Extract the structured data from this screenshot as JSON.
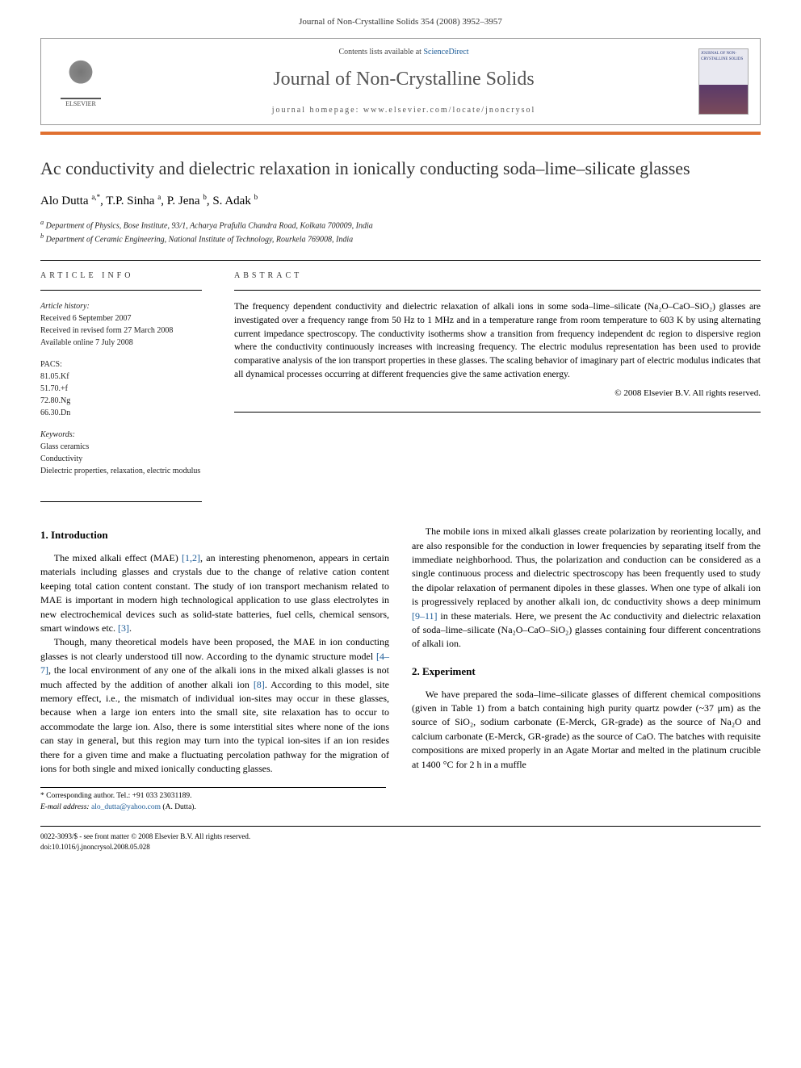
{
  "journal_ref": "Journal of Non-Crystalline Solids 354 (2008) 3952–3957",
  "header": {
    "publisher_name": "ELSEVIER",
    "contents_prefix": "Contents lists available at ",
    "contents_link": "ScienceDirect",
    "journal_name": "Journal of Non-Crystalline Solids",
    "homepage_label": "journal homepage: www.elsevier.com/locate/jnoncrysol",
    "cover_title": "JOURNAL OF NON-CRYSTALLINE SOLIDS"
  },
  "title": "Ac conductivity and dielectric relaxation in ionically conducting soda–lime–silicate glasses",
  "authors_html": "Alo Dutta <sup>a,*</sup>, T.P. Sinha <sup>a</sup>, P. Jena <sup>b</sup>, S. Adak <sup>b</sup>",
  "affiliations": {
    "a": "Department of Physics, Bose Institute, 93/1, Acharya Prafulla Chandra Road, Kolkata 700009, India",
    "b": "Department of Ceramic Engineering, National Institute of Technology, Rourkela 769008, India"
  },
  "article_info_label": "ARTICLE INFO",
  "abstract_label": "ABSTRACT",
  "history": {
    "head": "Article history:",
    "received": "Received 6 September 2007",
    "revised": "Received in revised form 27 March 2008",
    "online": "Available online 7 July 2008"
  },
  "pacs": {
    "head": "PACS:",
    "items": [
      "81.05.Kf",
      "51.70.+f",
      "72.80.Ng",
      "66.30.Dn"
    ]
  },
  "keywords": {
    "head": "Keywords:",
    "items": [
      "Glass ceramics",
      "Conductivity",
      "Dielectric properties, relaxation, electric modulus"
    ]
  },
  "abstract": "The frequency dependent conductivity and dielectric relaxation of alkali ions in some soda–lime–silicate (Na₂O–CaO–SiO₂) glasses are investigated over a frequency range from 50 Hz to 1 MHz and in a temperature range from room temperature to 603 K by using alternating current impedance spectroscopy. The conductivity isotherms show a transition from frequency independent dc region to dispersive region where the conductivity continuously increases with increasing frequency. The electric modulus representation has been used to provide comparative analysis of the ion transport properties in these glasses. The scaling behavior of imaginary part of electric modulus indicates that all dynamical processes occurring at different frequencies give the same activation energy.",
  "copyright": "© 2008 Elsevier B.V. All rights reserved.",
  "sections": {
    "intro_head": "1. Introduction",
    "intro_p1": "The mixed alkali effect (MAE) [1,2], an interesting phenomenon, appears in certain materials including glasses and crystals due to the change of relative cation content keeping total cation content constant. The study of ion transport mechanism related to MAE is important in modern high technological application to use glass electrolytes in new electrochemical devices such as solid-state batteries, fuel cells, chemical sensors, smart windows etc. [3].",
    "intro_p2": "Though, many theoretical models have been proposed, the MAE in ion conducting glasses is not clearly understood till now. According to the dynamic structure model [4–7], the local environment of any one of the alkali ions in the mixed alkali glasses is not much affected by the addition of another alkali ion [8]. According to this model, site memory effect, i.e., the mismatch of individual ion-sites may occur in these glasses, because when a large ion enters into the small site, site relaxation has to occur to accommodate the large ion. Also, there is some interstitial sites where none of the ions can stay in general, but this region may turn into the typical ion-sites if an ion resides there for a given time and make a fluctuating percolation pathway for the migration of ions for both single and mixed ionically conducting glasses.",
    "intro_p3": "The mobile ions in mixed alkali glasses create polarization by reorienting locally, and are also responsible for the conduction in lower frequencies by separating itself from the immediate neighborhood. Thus, the polarization and conduction can be considered as a single continuous process and dielectric spectroscopy has been frequently used to study the dipolar relaxation of permanent dipoles in these glasses. When one type of alkali ion is progressively replaced by another alkali ion, dc conductivity shows a deep minimum [9–11] in these materials. Here, we present the Ac conductivity and dielectric relaxation of soda–lime–silicate (Na₂O–CaO–SiO₂) glasses containing four different concentrations of alkali ion.",
    "exp_head": "2. Experiment",
    "exp_p1": "We have prepared the soda–lime–silicate glasses of different chemical compositions (given in Table 1) from a batch containing high purity quartz powder (~37 μm) as the source of SiO₂, sodium carbonate (E-Merck, GR-grade) as the source of Na₂O and calcium carbonate (E-Merck, GR-grade) as the source of CaO. The batches with requisite compositions are mixed properly in an Agate Mortar and melted in the platinum crucible at 1400 °C for 2 h in a muffle"
  },
  "corresponding": {
    "label": "* Corresponding author. Tel.: +91 033 23031189.",
    "email_label": "E-mail address:",
    "email": "alo_dutta@yahoo.com",
    "email_author": "(A. Dutta)."
  },
  "footer": {
    "left1": "0022-3093/$ - see front matter © 2008 Elsevier B.V. All rights reserved.",
    "left2": "doi:10.1016/j.jnoncrysol.2008.05.028"
  },
  "colors": {
    "accent_bar": "#e07030",
    "link": "#1a5a96",
    "text": "#000000",
    "muted": "#555555"
  }
}
